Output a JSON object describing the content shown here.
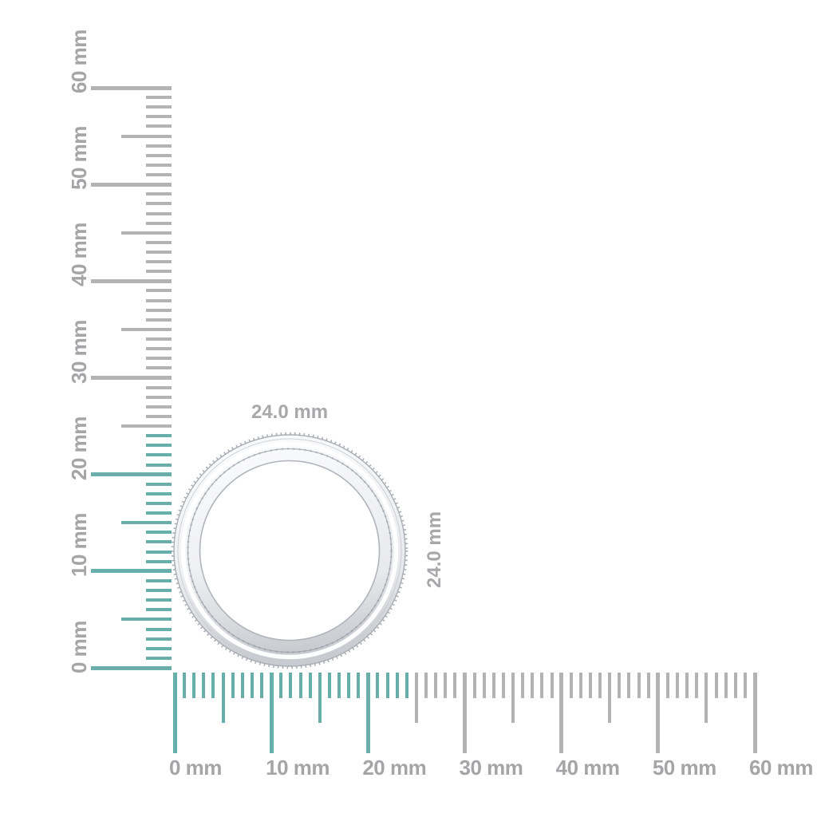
{
  "page": {
    "background": "#ffffff"
  },
  "palette": {
    "highlight_teal": "#68aeaa",
    "tick_gray": "#b3b3b4",
    "ruler_label_gray": "#a5a5a7",
    "dimension_label_gray": "#a8a8ab"
  },
  "vertical_ruler": {
    "unit": "mm",
    "min_mm": 0,
    "max_mm": 60,
    "label_step_mm": 10,
    "medium_step_mm": 5,
    "minor_step_mm": 1,
    "highlighted_range_mm": [
      0,
      24
    ],
    "labels": [
      "0 mm",
      "10 mm",
      "20 mm",
      "30 mm",
      "40 mm",
      "50 mm",
      "60 mm"
    ]
  },
  "horizontal_ruler": {
    "unit": "mm",
    "min_mm": 0,
    "max_mm": 60,
    "label_step_mm": 10,
    "medium_step_mm": 5,
    "minor_step_mm": 1,
    "highlighted_range_mm": [
      0,
      24
    ],
    "labels": [
      "0 mm",
      "10 mm",
      "20 mm",
      "30 mm",
      "40 mm",
      "50 mm",
      "60 mm"
    ]
  },
  "ring": {
    "width_label": "24.0 mm",
    "height_label": "24.0 mm",
    "metal_light": "#fafbfc",
    "metal_mid": "#eeeff2",
    "metal_dark": "#dcdee2",
    "edge_line": "#a9aeb5",
    "milgrain": "#979ca4",
    "highlight_white": "#ffffff",
    "channel_line": "#9ba1a9",
    "inner_edge": "#b0b4bb"
  }
}
